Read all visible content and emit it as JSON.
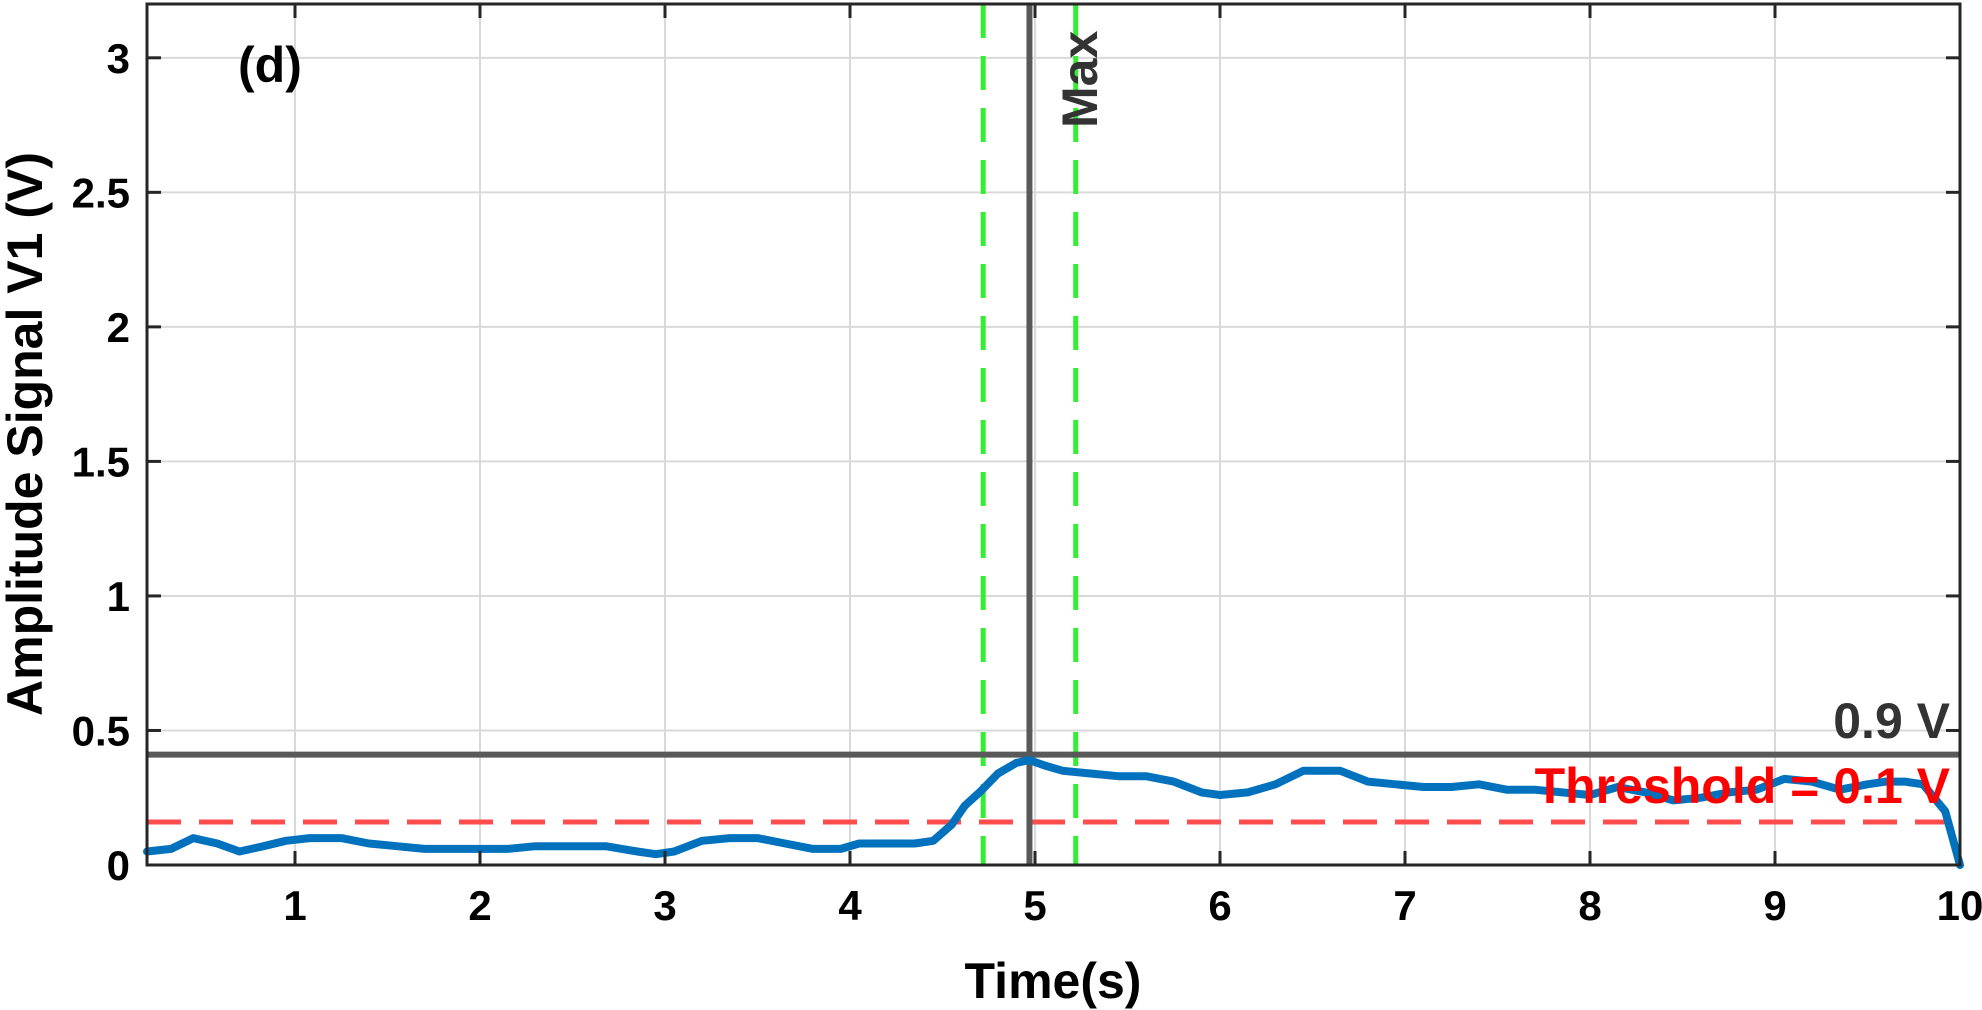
{
  "chart_data": {
    "type": "line",
    "panel_label": "(d)",
    "xlabel": "Time(s)",
    "ylabel": "Amplitude Signal V1 (V)",
    "xlim": [
      0.2,
      10
    ],
    "ylim": [
      0,
      3.2
    ],
    "x_ticks": [
      1,
      2,
      3,
      4,
      5,
      6,
      7,
      8,
      9,
      10
    ],
    "y_ticks": [
      0,
      0.5,
      1,
      1.5,
      2,
      2.5,
      3
    ],
    "x_tick_labels": [
      "1",
      "2",
      "3",
      "4",
      "5",
      "6",
      "7",
      "8",
      "9",
      "10"
    ],
    "y_tick_labels": [
      "0",
      "0.5",
      "1",
      "1.5",
      "2",
      "2.5",
      "3"
    ],
    "grid": true,
    "series": [
      {
        "color": "#0072BD",
        "x": [
          0.2,
          0.33,
          0.45,
          0.58,
          0.7,
          0.83,
          0.95,
          1.08,
          1.25,
          1.4,
          1.55,
          1.7,
          1.85,
          2.0,
          2.15,
          2.3,
          2.5,
          2.68,
          2.85,
          2.95,
          3.05,
          3.2,
          3.35,
          3.5,
          3.65,
          3.8,
          3.95,
          4.05,
          4.2,
          4.35,
          4.45,
          4.55,
          4.62,
          4.7,
          4.8,
          4.9,
          4.97,
          5.05,
          5.15,
          5.3,
          5.45,
          5.6,
          5.75,
          5.9,
          6.0,
          6.15,
          6.3,
          6.45,
          6.52,
          6.65,
          6.8,
          6.95,
          7.1,
          7.25,
          7.4,
          7.55,
          7.7,
          7.85,
          8.0,
          8.15,
          8.3,
          8.45,
          8.6,
          8.75,
          8.9,
          9.05,
          9.2,
          9.35,
          9.5,
          9.6,
          9.7,
          9.8,
          9.92,
          10.0
        ],
        "y": [
          0.05,
          0.06,
          0.1,
          0.08,
          0.05,
          0.07,
          0.09,
          0.1,
          0.1,
          0.08,
          0.07,
          0.06,
          0.06,
          0.06,
          0.06,
          0.07,
          0.07,
          0.07,
          0.05,
          0.04,
          0.05,
          0.09,
          0.1,
          0.1,
          0.08,
          0.06,
          0.06,
          0.08,
          0.08,
          0.08,
          0.09,
          0.15,
          0.22,
          0.27,
          0.34,
          0.38,
          0.39,
          0.37,
          0.35,
          0.34,
          0.33,
          0.33,
          0.31,
          0.27,
          0.26,
          0.27,
          0.3,
          0.35,
          0.35,
          0.35,
          0.31,
          0.3,
          0.29,
          0.29,
          0.3,
          0.28,
          0.28,
          0.27,
          0.26,
          0.29,
          0.27,
          0.24,
          0.25,
          0.27,
          0.28,
          0.32,
          0.31,
          0.28,
          0.3,
          0.31,
          0.31,
          0.3,
          0.2,
          0.0
        ]
      }
    ],
    "reference_lines": {
      "vertical_solid": {
        "x": 4.97,
        "color": "#595959"
      },
      "vertical_dashed": [
        {
          "x": 4.72,
          "color": "#33ee33"
        },
        {
          "x": 5.22,
          "color": "#33ee33"
        }
      ],
      "horizontal_solid": {
        "y": 0.41,
        "color": "#595959"
      },
      "horizontal_dashed": {
        "y": 0.16,
        "color": "#ff4d4d"
      }
    },
    "annotations": {
      "max_label": "Max",
      "level_label": "0.9 V",
      "threshold_label": "Threshold = 0.1 V",
      "max_color": "#333333",
      "level_color": "#333333",
      "threshold_color": "#ff0000"
    }
  }
}
